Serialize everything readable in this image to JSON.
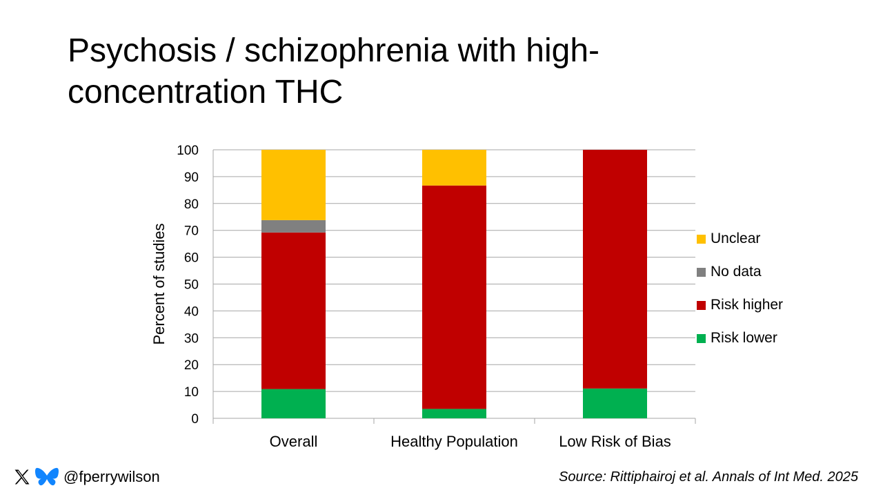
{
  "title": "Psychosis / schizophrenia with high-concentration THC",
  "chart_data": {
    "type": "bar",
    "stacked": true,
    "categories": [
      "Overall",
      "Healthy Population",
      "Low Risk of Bias"
    ],
    "series": [
      {
        "name": "Risk lower",
        "color": "#00b050",
        "values": [
          10.9,
          3.5,
          11.1
        ]
      },
      {
        "name": "Risk higher",
        "color": "#c00000",
        "values": [
          58.3,
          83.2,
          88.9
        ]
      },
      {
        "name": "No data",
        "color": "#808080",
        "values": [
          4.6,
          0,
          0
        ]
      },
      {
        "name": "Unclear",
        "color": "#ffc000",
        "values": [
          26.2,
          13.3,
          0
        ]
      }
    ],
    "legend_order": [
      "Unclear",
      "No data",
      "Risk higher",
      "Risk lower"
    ],
    "ylabel": "Percent of studies",
    "xlabel": "",
    "ylim": [
      0,
      100
    ],
    "yticks": [
      0,
      10,
      20,
      30,
      40,
      50,
      60,
      70,
      80,
      90,
      100
    ],
    "grid": true,
    "legend_position": "right"
  },
  "social": {
    "handle": "@fperrywilson",
    "icons": [
      "x-icon",
      "butterfly-icon"
    ]
  },
  "source": "Source: Rittiphairoj et al. Annals of Int Med. 2025"
}
